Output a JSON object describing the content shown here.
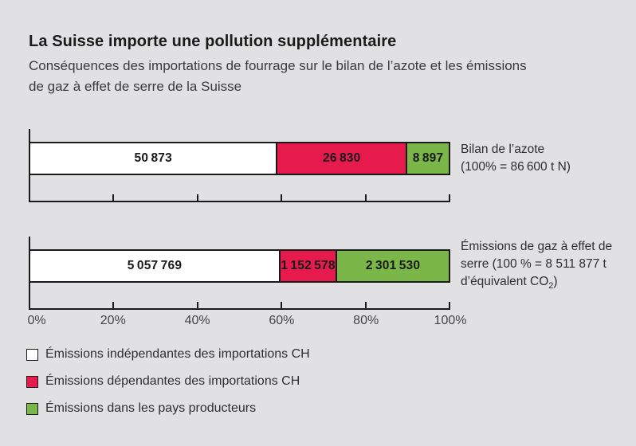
{
  "page": {
    "background": "#e1e1e3",
    "line_color": "#1a1a1a"
  },
  "header": {
    "title": "La Suisse importe une pollution supplémentaire",
    "subtitle_lines": [
      "Conséquences des importations de fourrage sur le bilan de l’azote et les émissions",
      "de gaz à effet de serre de la Suisse"
    ]
  },
  "chart_data": {
    "type": "bar",
    "variant": "horizontal-stacked",
    "grid": false,
    "legend_position": "bottom-left",
    "x_range": [
      0,
      100
    ],
    "x_ticks": [
      "0%",
      "20%",
      "40%",
      "60%",
      "80%",
      "100%"
    ],
    "categories": [
      {
        "id": "bilan-azote",
        "label_lines": [
          "Bilan de l’azote",
          "(100% = 86 600 t N)"
        ],
        "total": 86600
      },
      {
        "id": "emissions-ges",
        "label_lines": [
          "Émissions de gaz à effet de",
          "serre (100 % = 8 511 877 t"
        ],
        "label_line_sub": {
          "pre": "d’équivalent CO",
          "sub": "2",
          "post": ")"
        },
        "total": 8511877
      }
    ],
    "series": [
      {
        "name": "Émissions indépendantes des importations CH",
        "color": "#ffffff",
        "values": [
          50873,
          5057769
        ],
        "value_labels": [
          "50 873",
          "5 057 769"
        ]
      },
      {
        "name": "Émissions dépendantes des importations CH",
        "color": "#e61a4d",
        "values": [
          26830,
          1152578
        ],
        "value_labels": [
          "26 830",
          "1 152 578"
        ]
      },
      {
        "name": "Émissions dans les pays producteurs",
        "color": "#7ab648",
        "values": [
          8897,
          2301530
        ],
        "value_labels": [
          "8 897",
          "2 301 530"
        ]
      }
    ]
  }
}
